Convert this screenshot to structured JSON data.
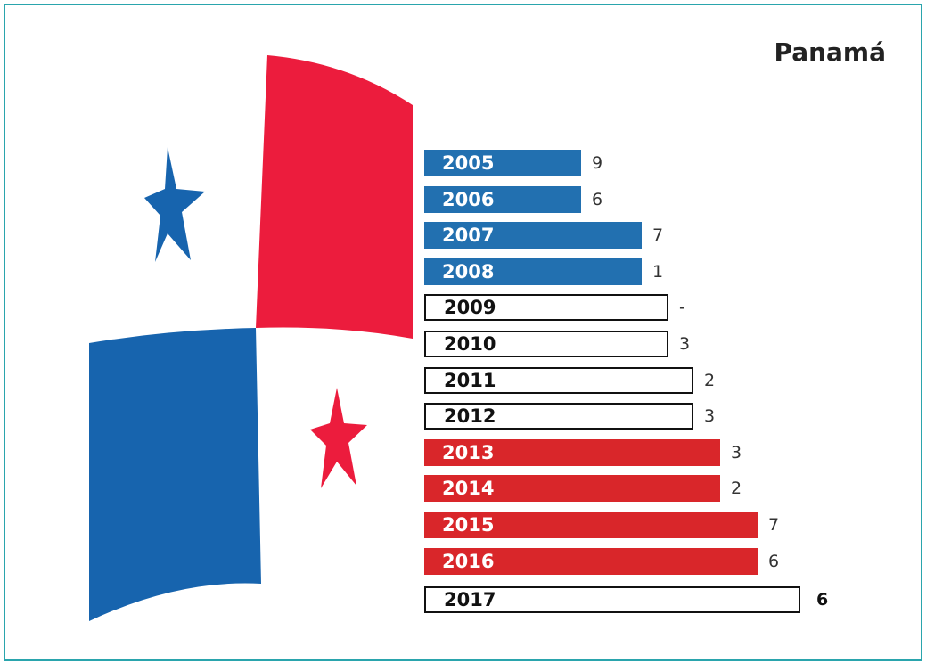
{
  "title": "Panamá",
  "rows": [
    {
      "year": "2005",
      "value": 9
    },
    {
      "year": "2006",
      "value": 6
    },
    {
      "year": "2007",
      "value": 7
    },
    {
      "year": "2008",
      "value": 1
    },
    {
      "year": "2009",
      "value": "-"
    },
    {
      "year": "2010",
      "value": 3
    },
    {
      "year": "2011",
      "value": 2
    },
    {
      "year": "2012",
      "value": 3
    },
    {
      "year": "2013",
      "value": 3
    },
    {
      "year": "2014",
      "value": 2
    },
    {
      "year": "2015",
      "value": 7
    },
    {
      "year": "2016",
      "value": 6
    },
    {
      "year": "2017",
      "value": 6
    }
  ]
}
